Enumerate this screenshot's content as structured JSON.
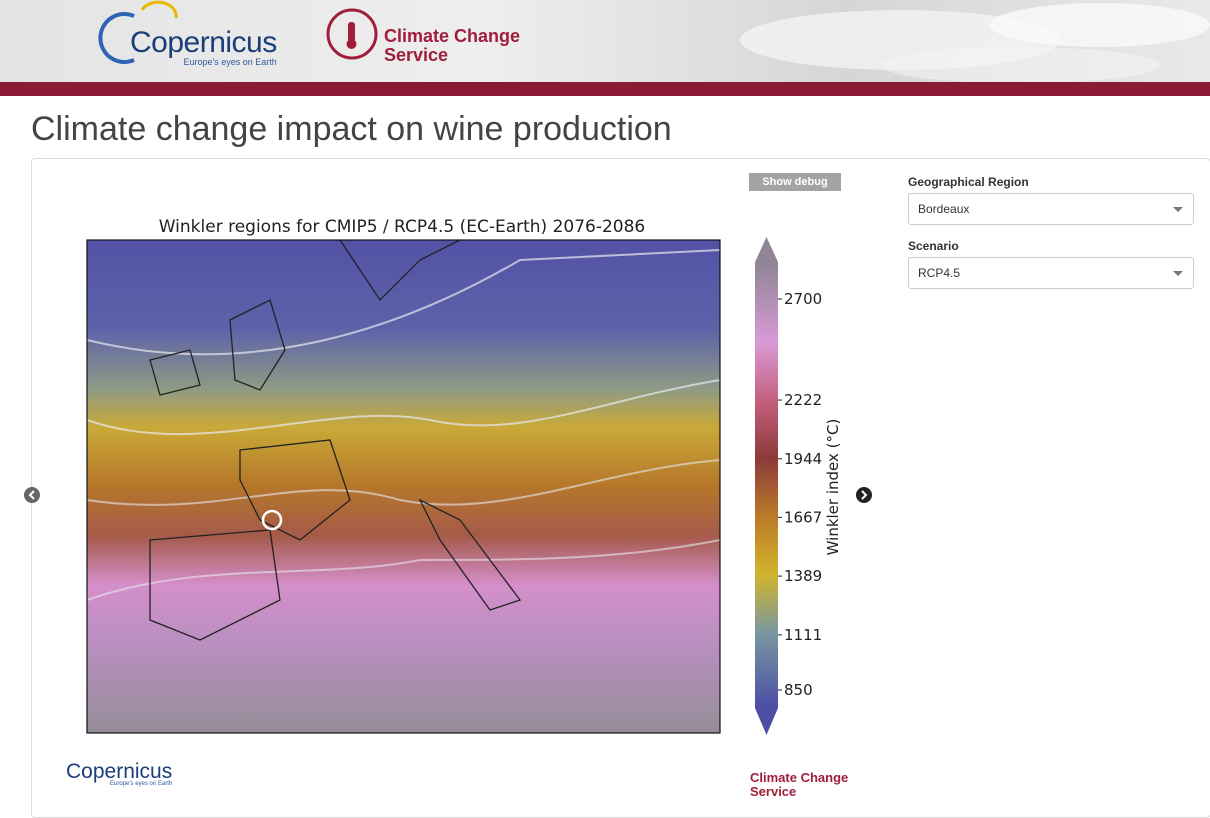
{
  "header": {
    "copernicus": "Copernicus",
    "copernicus_tagline": "Europe's eyes on Earth",
    "c3s_line1": "Climate Change",
    "c3s_line2": "Service"
  },
  "title": "Climate change impact on wine production",
  "show_debug": "Show debug",
  "map": {
    "title": "Winkler regions for CMIP5 / RCP4.5 (EC-Earth) 2076-2086",
    "colorbar": {
      "label": "Winkler index (°C)",
      "lim": [
        765,
        2875
      ],
      "ticks": [
        850,
        1111,
        1389,
        1667,
        1944,
        2222,
        2700
      ]
    }
  },
  "controls": {
    "region_label": "Geographical Region",
    "region_value": "Bordeaux",
    "scenario_label": "Scenario",
    "scenario_value": "RCP4.5"
  }
}
